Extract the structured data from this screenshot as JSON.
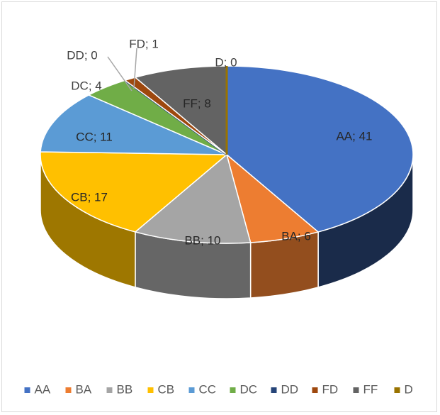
{
  "chart_data": {
    "type": "pie",
    "variant": "3d",
    "title": "",
    "label_format": "{name}; {value}",
    "legend_position": "bottom",
    "categories": [
      "AA",
      "BA",
      "BB",
      "CB",
      "CC",
      "DC",
      "DD",
      "FD",
      "FF",
      "D"
    ],
    "values": [
      41,
      6,
      10,
      17,
      11,
      4,
      0,
      1,
      8,
      0
    ],
    "colors": [
      "#4472C4",
      "#ED7D31",
      "#A5A5A5",
      "#FFC000",
      "#5B9BD5",
      "#70AD47",
      "#264478",
      "#9E480E",
      "#636363",
      "#997300"
    ]
  }
}
